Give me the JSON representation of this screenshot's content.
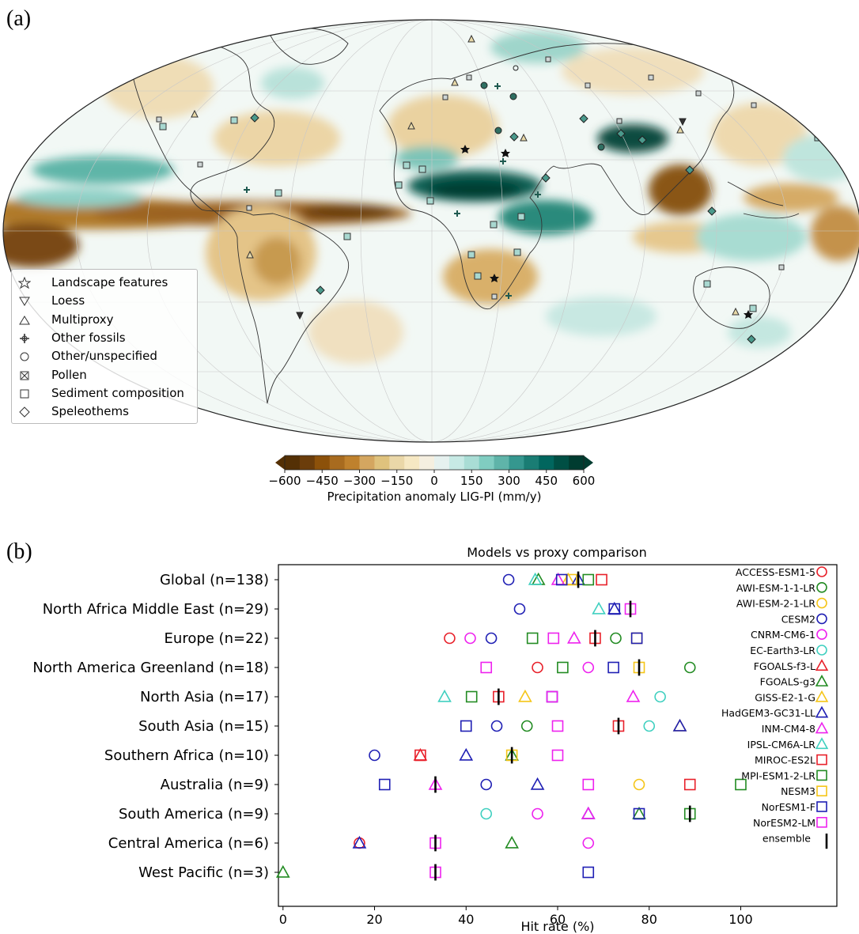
{
  "panel_a": {
    "label": "(a)",
    "legend": [
      {
        "label": "Landscape features",
        "icon": "star-marker"
      },
      {
        "label": "Loess",
        "icon": "down-triangle-marker"
      },
      {
        "label": "Multiproxy",
        "icon": "up-triangle-marker"
      },
      {
        "label": "Other fossils",
        "icon": "plus-marker"
      },
      {
        "label": "Other/unspecified",
        "icon": "circle-marker"
      },
      {
        "label": "Pollen",
        "icon": "x-marker"
      },
      {
        "label": "Sediment composition",
        "icon": "square-marker"
      },
      {
        "label": "Speleothems",
        "icon": "diamond-marker"
      }
    ],
    "colorbar": {
      "label": "Precipitation anomaly LIG-PI (mm/y)",
      "ticks": [
        "−600",
        "−450",
        "−300",
        "−150",
        "0",
        "150",
        "300",
        "450",
        "600"
      ],
      "min": -600,
      "max": 600,
      "dry_color": "#543005",
      "wet_color": "#003c30"
    }
  },
  "panel_b": {
    "label": "(b)"
  },
  "chart_data": {
    "type": "scatter",
    "title": "Models vs proxy comparison",
    "xlabel": "Hit rate (%)",
    "xlim": [
      -1,
      121
    ],
    "xticks": [
      0,
      20,
      40,
      60,
      80,
      100
    ],
    "categories": [
      "Global (n=138)",
      "North Africa Middle East (n=29)",
      "Europe (n=22)",
      "North America Greenland (n=18)",
      "North Asia (n=17)",
      "South Asia (n=15)",
      "Southern Africa (n=10)",
      "Australia (n=9)",
      "South America (n=9)",
      "Central America (n=6)",
      "West Pacific (n=3)"
    ],
    "series": [
      {
        "name": "ACCESS-ESM1-5",
        "marker": "circle",
        "color": "#e8202a",
        "values": [
          null,
          null,
          36.4,
          55.6,
          null,
          null,
          null,
          null,
          null,
          16.7,
          null
        ]
      },
      {
        "name": "AWI-ESM-1-1-LR",
        "marker": "circle",
        "color": "#228b22",
        "values": [
          null,
          null,
          72.7,
          88.9,
          null,
          53.3,
          null,
          null,
          null,
          null,
          null
        ]
      },
      {
        "name": "AWI-ESM-2-1-LR",
        "marker": "circle",
        "color": "#f5c518",
        "values": [
          null,
          null,
          null,
          null,
          null,
          null,
          null,
          77.8,
          null,
          null,
          null
        ]
      },
      {
        "name": "CESM2",
        "marker": "circle",
        "color": "#1f1fb4",
        "values": [
          49.3,
          51.7,
          45.5,
          null,
          null,
          46.7,
          20.0,
          44.4,
          null,
          null,
          null
        ]
      },
      {
        "name": "CNRM-CM6-1",
        "marker": "circle",
        "color": "#ee22ee",
        "values": [
          null,
          null,
          40.9,
          66.7,
          null,
          null,
          null,
          null,
          55.6,
          66.7,
          null
        ]
      },
      {
        "name": "EC-Earth3-LR",
        "marker": "circle",
        "color": "#40d0c0",
        "values": [
          null,
          null,
          null,
          null,
          82.4,
          80.0,
          null,
          null,
          44.4,
          null,
          null
        ]
      },
      {
        "name": "FGOALS-f3-L",
        "marker": "triangle",
        "color": "#e8202a",
        "values": [
          null,
          null,
          null,
          null,
          null,
          null,
          30.0,
          null,
          null,
          null,
          null
        ]
      },
      {
        "name": "FGOALS-g3",
        "marker": "triangle",
        "color": "#228b22",
        "values": [
          55.8,
          null,
          null,
          null,
          null,
          null,
          50.0,
          null,
          77.8,
          50.0,
          0.0
        ]
      },
      {
        "name": "GISS-E2-1-G",
        "marker": "triangle",
        "color": "#f5c518",
        "values": [
          62.3,
          null,
          null,
          null,
          52.9,
          86.7,
          null,
          null,
          null,
          null,
          null
        ]
      },
      {
        "name": "HadGEM3-GC31-LL",
        "marker": "triangle",
        "color": "#1f1fb4",
        "values": [
          64.5,
          72.4,
          null,
          null,
          null,
          86.7,
          40.0,
          55.6,
          66.7,
          16.7,
          null
        ]
      },
      {
        "name": "INM-CM4-8",
        "marker": "triangle",
        "color": "#ee22ee",
        "values": [
          60.1,
          null,
          63.6,
          null,
          76.5,
          null,
          null,
          33.3,
          66.7,
          null,
          null
        ]
      },
      {
        "name": "IPSL-CM6A-LR",
        "marker": "triangle",
        "color": "#40d0c0",
        "values": [
          55.1,
          69.0,
          null,
          null,
          35.3,
          null,
          null,
          null,
          null,
          null,
          null
        ]
      },
      {
        "name": "MIROC-ES2L",
        "marker": "square",
        "color": "#e8202a",
        "values": [
          69.6,
          null,
          68.2,
          null,
          47.1,
          73.3,
          30.0,
          88.9,
          null,
          null,
          null
        ]
      },
      {
        "name": "MPI-ESM1-2-LR",
        "marker": "square",
        "color": "#228b22",
        "values": [
          66.7,
          null,
          54.5,
          61.1,
          41.2,
          null,
          null,
          100.0,
          88.9,
          null,
          null
        ]
      },
      {
        "name": "NESM3",
        "marker": "square",
        "color": "#f5c518",
        "values": [
          63.0,
          null,
          77.3,
          77.8,
          null,
          null,
          50.0,
          null,
          null,
          null,
          null
        ]
      },
      {
        "name": "NorESM1-F",
        "marker": "square",
        "color": "#1f1fb4",
        "values": [
          60.9,
          72.4,
          77.3,
          72.2,
          58.8,
          40.0,
          null,
          22.2,
          77.8,
          null,
          66.7
        ]
      },
      {
        "name": "NorESM2-LM",
        "marker": "square",
        "color": "#ee22ee",
        "values": [
          null,
          75.9,
          59.1,
          44.4,
          58.8,
          60.0,
          60.0,
          66.7,
          null,
          33.3,
          33.3
        ]
      },
      {
        "name": "ensemble",
        "marker": "vline",
        "color": "#000000",
        "values": [
          64.5,
          75.9,
          68.2,
          77.8,
          47.1,
          73.3,
          50.0,
          33.3,
          88.9,
          33.3,
          33.3
        ]
      }
    ]
  }
}
